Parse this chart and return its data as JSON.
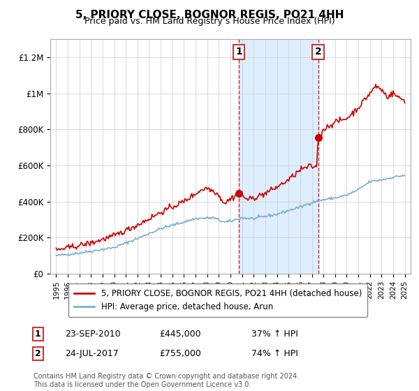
{
  "title": "5, PRIORY CLOSE, BOGNOR REGIS, PO21 4HH",
  "subtitle": "Price paid vs. HM Land Registry’s House Price Index (HPI)",
  "legend_line1": "5, PRIORY CLOSE, BOGNOR REGIS, PO21 4HH (detached house)",
  "legend_line2": "HPI: Average price, detached house, Arun",
  "annotation1_label": "1",
  "annotation1_date": "23-SEP-2010",
  "annotation1_price": "£445,000",
  "annotation1_hpi": "37% ↑ HPI",
  "annotation2_label": "2",
  "annotation2_date": "24-JUL-2017",
  "annotation2_price": "£755,000",
  "annotation2_hpi": "74% ↑ HPI",
  "footnote": "Contains HM Land Registry data © Crown copyright and database right 2024.\nThis data is licensed under the Open Government Licence v3.0.",
  "sale1_x": 2010.73,
  "sale1_y": 445000,
  "sale2_x": 2017.56,
  "sale2_y": 755000,
  "red_color": "#cc0000",
  "blue_color": "#7aaed6",
  "shade_color": "#ddeeff",
  "background_color": "#ffffff",
  "grid_color": "#cccccc",
  "ylim": [
    0,
    1300000
  ],
  "xlim": [
    1994.5,
    2025.5
  ]
}
